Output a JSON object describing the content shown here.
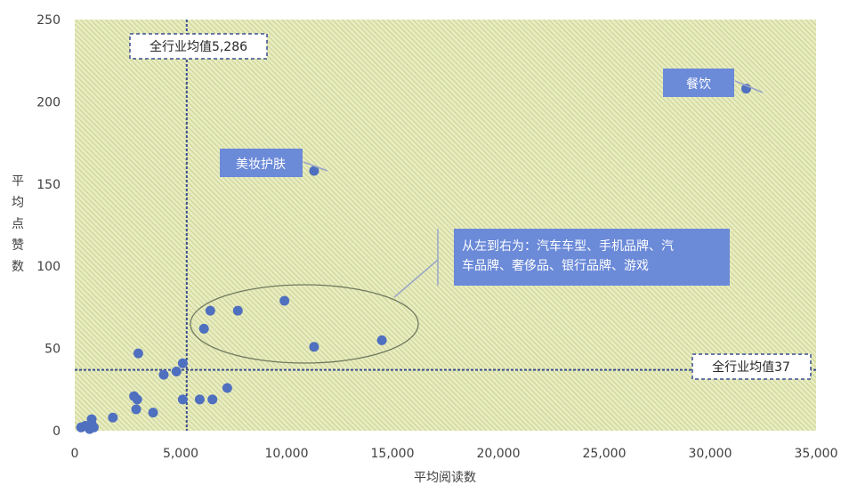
{
  "chart_data": {
    "type": "scatter",
    "xlabel": "平均阅读数",
    "ylabel": "平均点赞数",
    "xlim": [
      0,
      35000
    ],
    "ylim": [
      0,
      250
    ],
    "x_ticks": [
      "0",
      "5,000",
      "10,000",
      "15,000",
      "20,000",
      "25,000",
      "30,000",
      "35,000"
    ],
    "y_ticks": [
      "0",
      "50",
      "100",
      "150",
      "200",
      "250"
    ],
    "grid": false,
    "colors": {
      "point": "#4f6fbf",
      "callout": "#6b8ad8",
      "plot_bg": "#e8ecc0",
      "hatch": "#b8c27a",
      "ref_line": "#3b4f8f"
    },
    "points": [
      {
        "x": 300,
        "y": 2
      },
      {
        "x": 500,
        "y": 3
      },
      {
        "x": 700,
        "y": 1
      },
      {
        "x": 800,
        "y": 7
      },
      {
        "x": 800,
        "y": 4
      },
      {
        "x": 900,
        "y": 2
      },
      {
        "x": 1800,
        "y": 8
      },
      {
        "x": 2800,
        "y": 21
      },
      {
        "x": 2900,
        "y": 13
      },
      {
        "x": 2950,
        "y": 19
      },
      {
        "x": 3000,
        "y": 47
      },
      {
        "x": 3700,
        "y": 11
      },
      {
        "x": 4200,
        "y": 34
      },
      {
        "x": 4800,
        "y": 36
      },
      {
        "x": 5100,
        "y": 41
      },
      {
        "x": 5100,
        "y": 19
      },
      {
        "x": 5900,
        "y": 19
      },
      {
        "x": 6100,
        "y": 62
      },
      {
        "x": 6400,
        "y": 73
      },
      {
        "x": 6500,
        "y": 19
      },
      {
        "x": 7200,
        "y": 26
      },
      {
        "x": 7700,
        "y": 73
      },
      {
        "x": 9900,
        "y": 79
      },
      {
        "x": 11300,
        "y": 51
      },
      {
        "x": 14500,
        "y": 55
      },
      {
        "x": 11300,
        "y": 158
      },
      {
        "x": 31700,
        "y": 208
      }
    ],
    "reference_lines": [
      {
        "axis": "x",
        "value": 5286,
        "label": "全行业均值5,286"
      },
      {
        "axis": "y",
        "value": 37,
        "label": "全行业均值37"
      }
    ],
    "annotations": [
      {
        "label": "餐饮",
        "x": 31700,
        "y": 208
      },
      {
        "label": "美妆护肤",
        "x": 11300,
        "y": 158
      },
      {
        "label_lines": [
          "从左到右为：汽车车型、手机品牌、汽",
          "车品牌、奢侈品、银行品牌、游戏"
        ],
        "x": 10500,
        "y": 65
      }
    ]
  }
}
